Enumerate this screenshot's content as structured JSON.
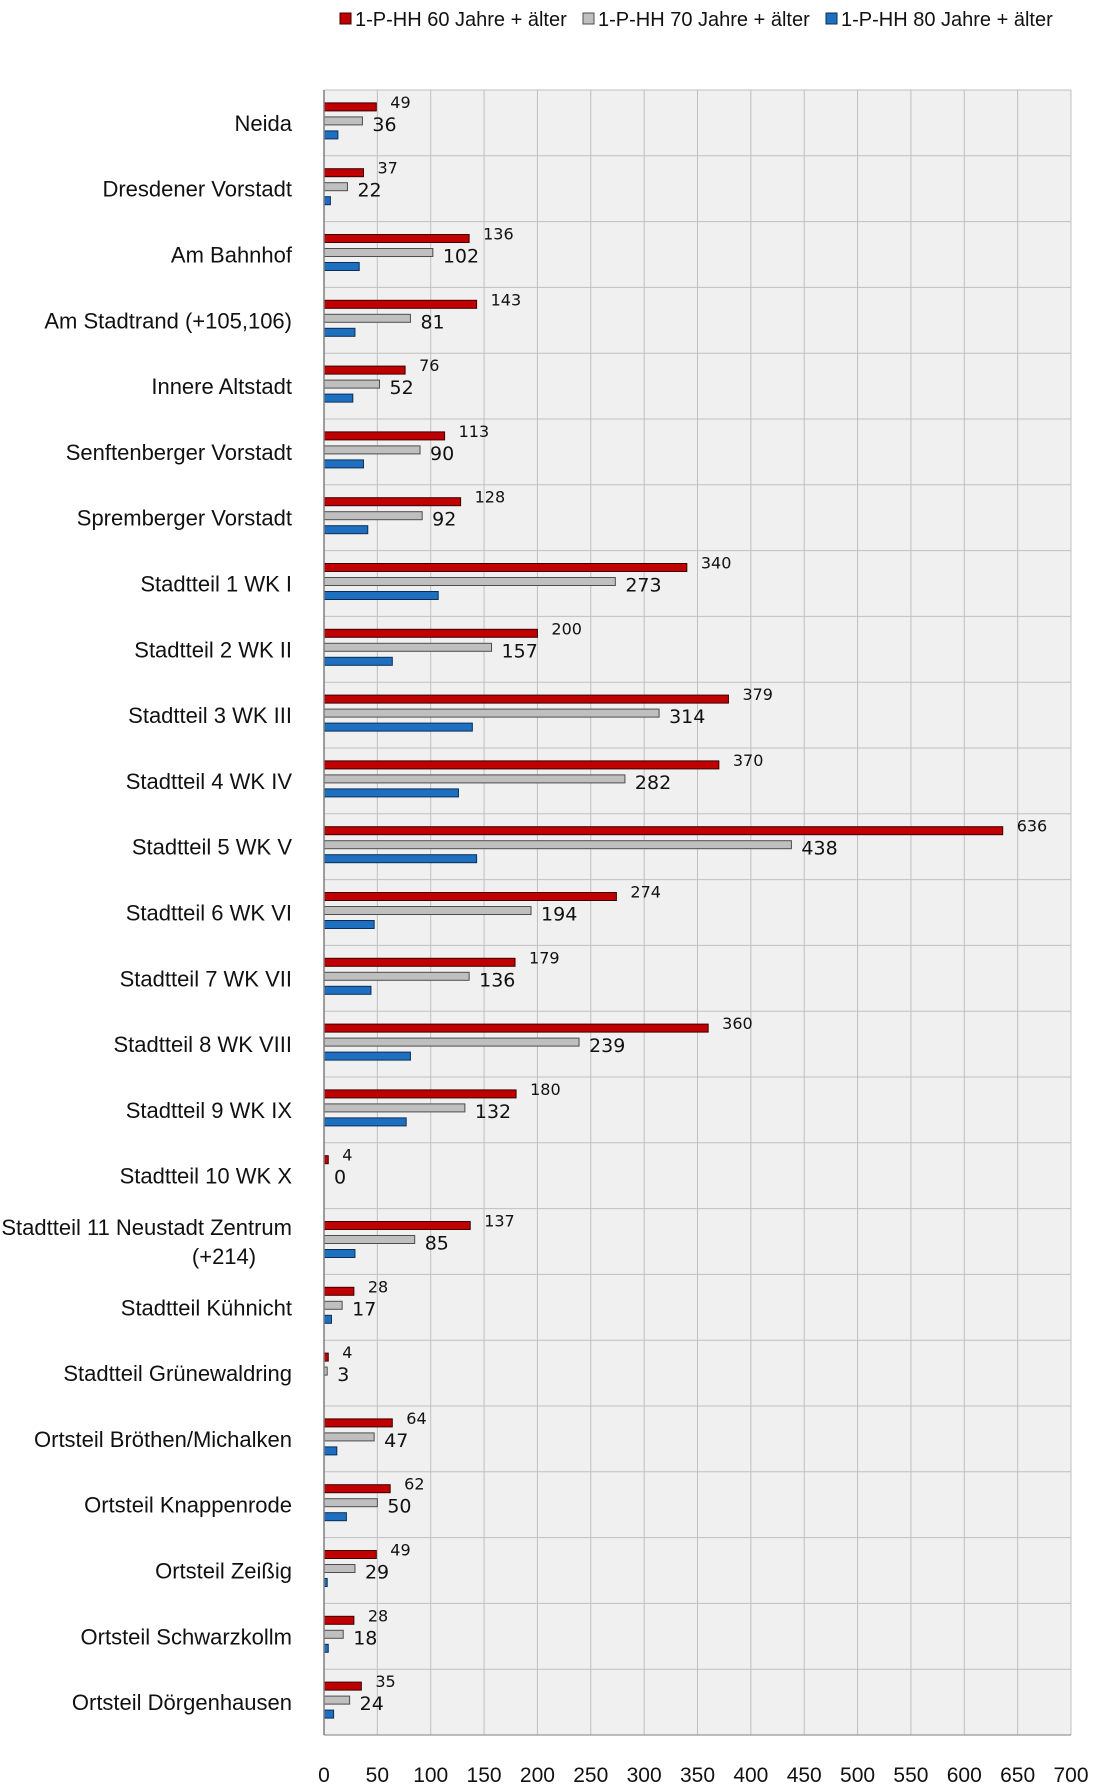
{
  "chart_data": {
    "type": "bar",
    "orientation": "horizontal",
    "title": "",
    "xlabel": "",
    "ylabel": "",
    "categories": [
      [
        "Neida"
      ],
      [
        "Dresdener Vorstadt"
      ],
      [
        "Am Bahnhof"
      ],
      [
        "Am Stadtrand (+105,106)"
      ],
      [
        "Innere Altstadt"
      ],
      [
        "Senftenberger Vorstadt"
      ],
      [
        "Spremberger Vorstadt"
      ],
      [
        "Stadtteil 1 WK I"
      ],
      [
        "Stadtteil 2 WK II"
      ],
      [
        "Stadtteil 3 WK III"
      ],
      [
        "Stadtteil 4 WK IV"
      ],
      [
        "Stadtteil 5 WK V"
      ],
      [
        "Stadtteil 6 WK VI"
      ],
      [
        "Stadtteil 7 WK VII"
      ],
      [
        "Stadtteil 8 WK VIII"
      ],
      [
        "Stadtteil 9 WK IX"
      ],
      [
        "Stadtteil 10 WK X"
      ],
      [
        "Stadtteil 11 Neustadt Zentrum",
        "(+214)"
      ],
      [
        "Stadtteil Kühnicht"
      ],
      [
        "Stadtteil Grünewaldring"
      ],
      [
        "Ortsteil Bröthen/Michalken"
      ],
      [
        "Ortsteil Knappenrode"
      ],
      [
        "Ortsteil Zeißig"
      ],
      [
        "Ortsteil Schwarzkollm"
      ],
      [
        "Ortsteil Dörgenhausen"
      ]
    ],
    "series": [
      {
        "name": "1-P-HH 60 Jahre + älter",
        "color": "#C00000",
        "values": [
          49,
          37,
          136,
          143,
          76,
          113,
          128,
          340,
          200,
          379,
          370,
          636,
          274,
          179,
          360,
          180,
          4,
          137,
          28,
          4,
          64,
          62,
          49,
          28,
          35
        ],
        "labels_shown": true
      },
      {
        "name": "1-P-HH 70 Jahre + älter",
        "color": "#BFBFBF",
        "values": [
          36,
          22,
          102,
          81,
          52,
          90,
          92,
          273,
          157,
          314,
          282,
          438,
          194,
          136,
          239,
          132,
          0,
          85,
          17,
          3,
          47,
          50,
          29,
          18,
          24
        ],
        "labels_shown": true
      },
      {
        "name": "1-P-HH 80 Jahre + älter",
        "color": "#1F6FC0",
        "values": [
          13,
          6,
          33,
          29,
          27,
          37,
          41,
          107,
          64,
          139,
          126,
          143,
          47,
          44,
          81,
          77,
          0,
          29,
          7,
          0,
          12,
          21,
          3,
          4,
          9
        ],
        "labels_shown": false
      }
    ],
    "xlim": [
      0,
      700
    ],
    "x_ticks": [
      "0",
      "50",
      "100",
      "150",
      "200",
      "250",
      "300",
      "350",
      "400",
      "450",
      "500",
      "550",
      "600",
      "650",
      "700"
    ],
    "grid": true,
    "plot_background": "#F0F0F0",
    "grid_color": "#BFBFBF",
    "legend": "top"
  }
}
